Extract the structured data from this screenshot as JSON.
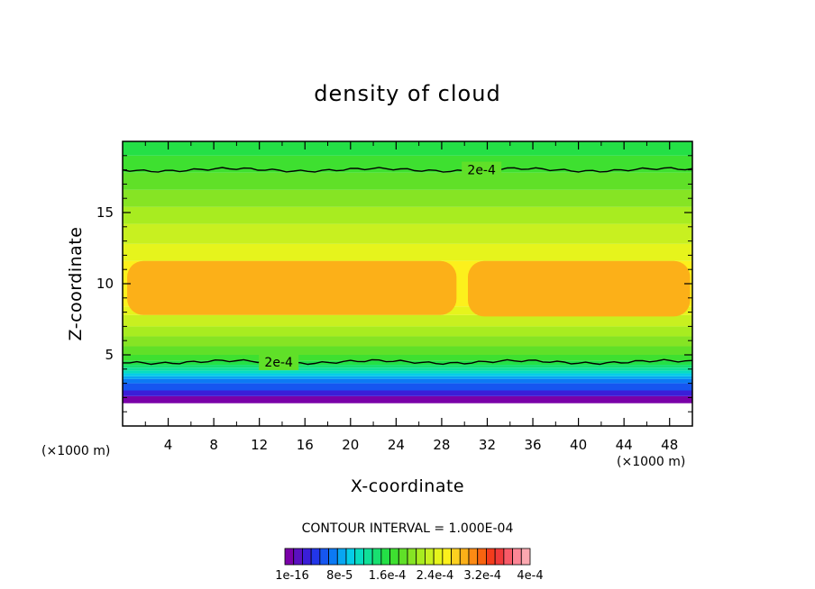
{
  "chart_data": {
    "type": "heatmap",
    "title": "density of cloud",
    "xlabel": "X-coordinate",
    "ylabel": "Z-coordinate",
    "x_unit_label": "(×1000 m)",
    "xlim": [
      0,
      50
    ],
    "ylim": [
      0,
      20
    ],
    "x_ticks": [
      "4",
      "8",
      "12",
      "16",
      "20",
      "24",
      "28",
      "32",
      "36",
      "40",
      "44",
      "48"
    ],
    "y_ticks": [
      "5",
      "10",
      "15"
    ],
    "contour_interval_text": "CONTOUR INTERVAL = 1.000E-04",
    "colorbar": {
      "labels": [
        "1e-16",
        "8e-5",
        "1.6e-4",
        "2.4e-4",
        "3.2e-4",
        "4e-4"
      ],
      "colors": [
        "#7a00a8",
        "#5a10c0",
        "#3a1ed8",
        "#2236e8",
        "#1656f0",
        "#0c7af4",
        "#08a6f2",
        "#06cce8",
        "#08dcc0",
        "#10e098",
        "#18e070",
        "#24e046",
        "#3ee030",
        "#60e028",
        "#86e424",
        "#a8ec20",
        "#c8f020",
        "#e6f41c",
        "#fcf01c",
        "#fcd020",
        "#fcb018",
        "#fc8a14",
        "#f86410",
        "#f43c1c",
        "#f03a3a",
        "#f85a68",
        "#fc8696",
        "#fca8b0"
      ]
    },
    "bands": [
      {
        "z": [
          1.6,
          2.1
        ],
        "color": "#7a00a8"
      },
      {
        "z": [
          2.1,
          2.5
        ],
        "color": "#3a1ed8"
      },
      {
        "z": [
          2.5,
          3.0
        ],
        "color": "#1656f0"
      },
      {
        "z": [
          3.0,
          3.3
        ],
        "color": "#0c7af4"
      },
      {
        "z": [
          3.3,
          3.5
        ],
        "color": "#08a6f2"
      },
      {
        "z": [
          3.5,
          3.7
        ],
        "color": "#06cce8"
      },
      {
        "z": [
          3.7,
          3.9
        ],
        "color": "#08dcc0"
      },
      {
        "z": [
          3.9,
          4.1
        ],
        "color": "#10e098"
      },
      {
        "z": [
          4.1,
          4.3
        ],
        "color": "#18e070"
      },
      {
        "z": [
          4.3,
          4.6
        ],
        "color": "#24e046"
      },
      {
        "z": [
          4.6,
          5.0
        ],
        "color": "#3ee030"
      },
      {
        "z": [
          5.0,
          5.6
        ],
        "color": "#60e028"
      },
      {
        "z": [
          5.6,
          6.3
        ],
        "color": "#86e424"
      },
      {
        "z": [
          6.3,
          7.0
        ],
        "color": "#a8ec20"
      },
      {
        "z": [
          7.0,
          7.8
        ],
        "color": "#c8f020"
      },
      {
        "z": [
          7.8,
          8.4
        ],
        "color": "#e6f41c"
      },
      {
        "z": [
          8.4,
          11.6
        ],
        "color": "#fcf01c"
      },
      {
        "z": [
          11.6,
          12.8
        ],
        "color": "#e6f41c"
      },
      {
        "z": [
          12.8,
          14.2
        ],
        "color": "#c8f020"
      },
      {
        "z": [
          14.2,
          15.4
        ],
        "color": "#a8ec20"
      },
      {
        "z": [
          15.4,
          16.6
        ],
        "color": "#86e424"
      },
      {
        "z": [
          16.6,
          17.8
        ],
        "color": "#60e028"
      },
      {
        "z": [
          17.8,
          19.0
        ],
        "color": "#3ee030"
      },
      {
        "z": [
          19.0,
          20.0
        ],
        "color": "#24e046"
      }
    ],
    "orange_regions": [
      {
        "x": [
          0.4,
          29.3
        ],
        "z": [
          7.8,
          11.6
        ],
        "color": "#fcb018"
      },
      {
        "x": [
          30.3,
          49.8
        ],
        "z": [
          7.7,
          11.6
        ],
        "color": "#fcb018"
      }
    ],
    "contours": [
      {
        "level": "2e-4",
        "z": 18.0,
        "label_x": 31.5
      },
      {
        "level": "2e-4",
        "z": 4.5,
        "label_x": 13.7
      }
    ]
  }
}
